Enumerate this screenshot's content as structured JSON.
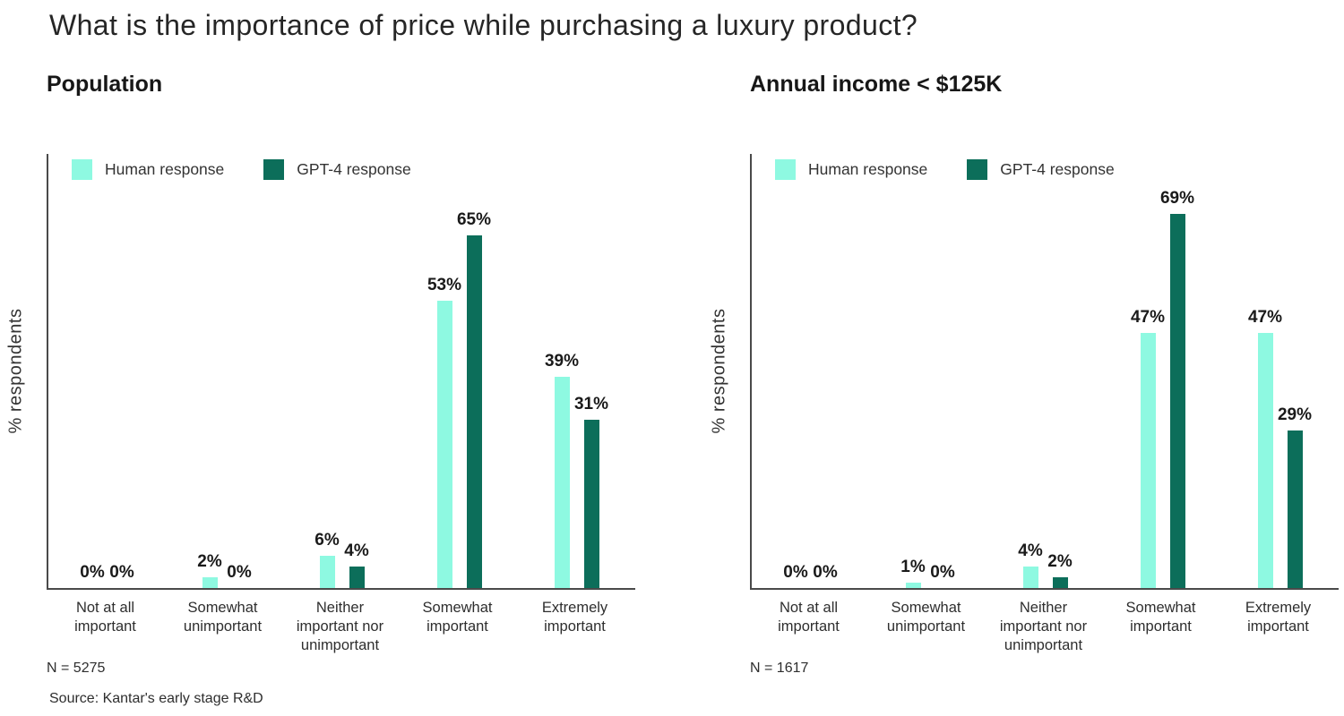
{
  "title": "What is the importance of price while purchasing a luxury product?",
  "source": "Source: Kantar's early stage R&D",
  "colors": {
    "human": "#8EF9E1",
    "gpt4": "#0C6E5A",
    "axis": "#4A4A4A"
  },
  "chart_data": [
    {
      "type": "bar",
      "title": "Population",
      "ylabel": "% respondents",
      "n_label": "N = 5275",
      "value_suffix": "%",
      "ylim": [
        0,
        80
      ],
      "grid": false,
      "legend_position": "top-left",
      "categories": [
        "Not at all important",
        "Somewhat unimportant",
        "Neither important nor unimportant",
        "Somewhat important",
        "Extremely important"
      ],
      "category_lines": [
        [
          "Not at all",
          "important"
        ],
        [
          "Somewhat",
          "unimportant"
        ],
        [
          "Neither",
          "important nor",
          "unimportant"
        ],
        [
          "Somewhat",
          "important"
        ],
        [
          "Extremely",
          "important"
        ]
      ],
      "series": [
        {
          "name": "Human response",
          "color": "#8EF9E1",
          "values": [
            0,
            2,
            6,
            53,
            39
          ]
        },
        {
          "name": "GPT-4 response",
          "color": "#0C6E5A",
          "values": [
            0,
            0,
            4,
            65,
            31
          ]
        }
      ]
    },
    {
      "type": "bar",
      "title": "Annual income < $125K",
      "ylabel": "% respondents",
      "n_label": "N = 1617",
      "value_suffix": "%",
      "ylim": [
        0,
        80
      ],
      "grid": false,
      "legend_position": "top-left",
      "categories": [
        "Not at all important",
        "Somewhat unimportant",
        "Neither important nor unimportant",
        "Somewhat important",
        "Extremely important"
      ],
      "category_lines": [
        [
          "Not at all",
          "important"
        ],
        [
          "Somewhat",
          "unimportant"
        ],
        [
          "Neither",
          "important nor",
          "unimportant"
        ],
        [
          "Somewhat",
          "important"
        ],
        [
          "Extremely",
          "important"
        ]
      ],
      "series": [
        {
          "name": "Human response",
          "color": "#8EF9E1",
          "values": [
            0,
            1,
            4,
            47,
            47
          ]
        },
        {
          "name": "GPT-4 response",
          "color": "#0C6E5A",
          "values": [
            0,
            0,
            2,
            69,
            29
          ]
        }
      ]
    }
  ]
}
